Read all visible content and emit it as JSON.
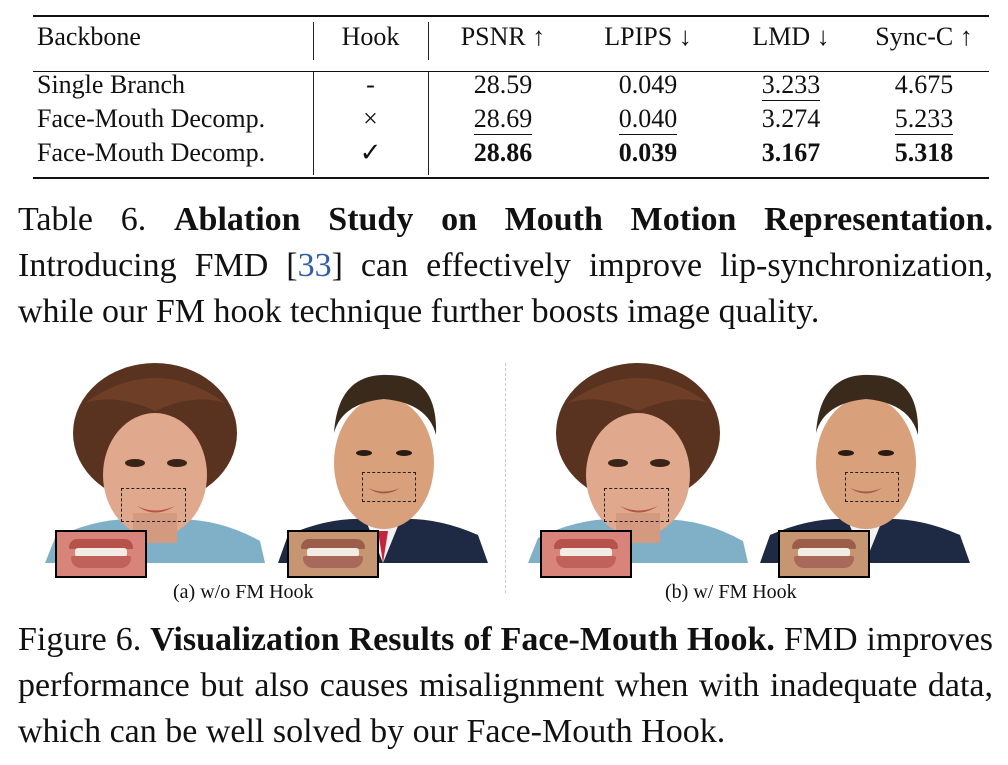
{
  "table": {
    "headers": [
      "Backbone",
      "Hook",
      "PSNR ↑",
      "LPIPS ↓",
      "LMD ↓",
      "Sync-C ↑"
    ],
    "rows": [
      {
        "backbone": "Single Branch",
        "hook": "-",
        "psnr": "28.59",
        "lpips": "0.049",
        "lmd": "3.233",
        "syncc": "4.675"
      },
      {
        "backbone": "Face-Mouth Decomp.",
        "hook": "×",
        "psnr": "28.69",
        "lpips": "0.040",
        "lmd": "3.274",
        "syncc": "5.233"
      },
      {
        "backbone": "Face-Mouth Decomp.",
        "hook": "✓",
        "psnr": "28.86",
        "lpips": "0.039",
        "lmd": "3.167",
        "syncc": "5.318"
      }
    ]
  },
  "table_caption": {
    "label": "Table 6.",
    "title": "Ablation Study on Mouth Motion Representation.",
    "text_pre": "Introducing FMD [",
    "cite": "33",
    "text_post": "] can effectively improve lip-synchronization, while our FM hook technique further boosts image quality."
  },
  "figure": {
    "subcaption_a": "(a)  w/o FM Hook",
    "subcaption_b": "(b)  w/ FM Hook",
    "colors": {
      "hair_a": "#5a3320",
      "skin_a": "#e0a88c",
      "jacket_a": "#7fb0c8",
      "hair_b": "#3a2a1c",
      "skin_b": "#d9a07c",
      "suit_b": "#1e2a44",
      "tie_b": "#c4243c"
    }
  },
  "figure_caption": {
    "label": "Figure 6.",
    "title": "Visualization Results of Face-Mouth Hook.",
    "text": "FMD improves performance but also causes misalignment when with inadequate data, which can be well solved by our Face-Mouth Hook."
  }
}
